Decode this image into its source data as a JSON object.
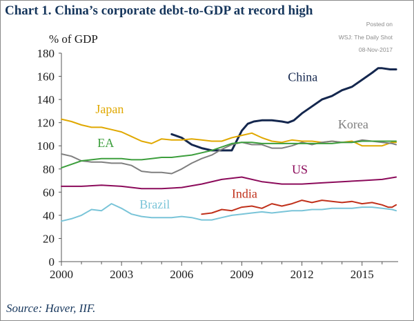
{
  "title": "Chart 1. China’s corporate debt-to-GDP at record high",
  "stamp": [
    "Posted on",
    "WSJ: The Daily Shot",
    "08-Nov-2017"
  ],
  "source": "Source: Haver, IIF.",
  "chart_data": {
    "type": "line",
    "ylabel": "% of GDP",
    "ylim": [
      0,
      180
    ],
    "xlim": [
      2000,
      2016.8
    ],
    "yticks": [
      0,
      20,
      40,
      60,
      80,
      100,
      120,
      140,
      160,
      180
    ],
    "xticks": [
      2000,
      2003,
      2006,
      2009,
      2012,
      2015
    ],
    "grid": false,
    "series": [
      {
        "name": "China",
        "color": "#14274e",
        "width": 3,
        "label_at": [
          2011.3,
          156
        ],
        "x": [
          2005.5,
          2006.0,
          2006.5,
          2007.0,
          2007.5,
          2008.0,
          2008.5,
          2009.0,
          2009.3,
          2009.6,
          2010.0,
          2010.5,
          2011.0,
          2011.3,
          2011.6,
          2012.0,
          2012.5,
          2013.0,
          2013.5,
          2014.0,
          2014.5,
          2015.0,
          2015.5,
          2015.8,
          2016.0,
          2016.4,
          2016.7
        ],
        "y": [
          110,
          107,
          101,
          98,
          96,
          96,
          96,
          113,
          119,
          121,
          122,
          122,
          121,
          120,
          122,
          128,
          134,
          140,
          143,
          148,
          151,
          157,
          163,
          167,
          167,
          166,
          166
        ]
      },
      {
        "name": "Japan",
        "color": "#e0a800",
        "width": 2,
        "label_at": [
          2001.7,
          128
        ],
        "x": [
          2000,
          2000.5,
          2001,
          2001.5,
          2002,
          2002.5,
          2003,
          2003.5,
          2004,
          2004.5,
          2005,
          2005.5,
          2006,
          2006.5,
          2007,
          2007.5,
          2008,
          2008.5,
          2009,
          2009.5,
          2010,
          2010.5,
          2011,
          2011.5,
          2012,
          2012.5,
          2013,
          2013.5,
          2014,
          2014.5,
          2015,
          2015.5,
          2016,
          2016.5,
          2016.7
        ],
        "y": [
          123,
          121,
          118,
          116,
          116,
          114,
          112,
          108,
          104,
          102,
          106,
          105,
          105,
          106,
          105,
          104,
          104,
          107,
          109,
          111,
          107,
          104,
          103,
          105,
          104,
          104,
          103,
          104,
          103,
          104,
          100,
          100,
          100,
          103,
          103
        ]
      },
      {
        "name": "Korea",
        "color": "#7f7f7f",
        "width": 2,
        "label_at": [
          2013.8,
          115
        ],
        "x": [
          2000,
          2000.5,
          2001,
          2001.5,
          2002,
          2002.5,
          2003,
          2003.5,
          2004,
          2004.5,
          2005,
          2005.5,
          2006,
          2006.5,
          2007,
          2007.5,
          2008,
          2008.5,
          2009,
          2009.5,
          2010,
          2010.5,
          2011,
          2011.5,
          2012,
          2012.5,
          2013,
          2013.5,
          2014,
          2014.5,
          2015,
          2015.5,
          2016,
          2016.5,
          2016.7
        ],
        "y": [
          93,
          91,
          87,
          86,
          86,
          85,
          85,
          83,
          78,
          77,
          77,
          76,
          80,
          85,
          89,
          92,
          97,
          101,
          103,
          101,
          101,
          98,
          98,
          100,
          103,
          101,
          103,
          104,
          103,
          103,
          105,
          104,
          103,
          102,
          101
        ]
      },
      {
        "name": "EA",
        "color": "#3c9e3c",
        "width": 2,
        "label_at": [
          2001.8,
          99
        ],
        "x": [
          2000,
          2000.5,
          2001,
          2001.5,
          2002,
          2002.5,
          2003,
          2003.5,
          2004,
          2004.5,
          2005,
          2005.5,
          2006,
          2006.5,
          2007,
          2007.5,
          2008,
          2008.5,
          2009,
          2009.5,
          2010,
          2010.5,
          2011,
          2011.5,
          2012,
          2012.5,
          2013,
          2013.5,
          2014,
          2014.5,
          2015,
          2015.5,
          2016,
          2016.5,
          2016.7
        ],
        "y": [
          81,
          84,
          87,
          88,
          89,
          89,
          89,
          88,
          88,
          89,
          90,
          90,
          91,
          92,
          94,
          96,
          99,
          102,
          103,
          103,
          102,
          102,
          102,
          102,
          102,
          102,
          102,
          102,
          103,
          103,
          104,
          104,
          104,
          104,
          104
        ]
      },
      {
        "name": "US",
        "color": "#8b0a5a",
        "width": 2,
        "label_at": [
          2011.5,
          76
        ],
        "x": [
          2000,
          2001,
          2002,
          2003,
          2004,
          2005,
          2006,
          2007,
          2008,
          2009,
          2010,
          2011,
          2012,
          2013,
          2014,
          2015,
          2016,
          2016.7
        ],
        "y": [
          65,
          65,
          66,
          65,
          63,
          63,
          64,
          67,
          71,
          73,
          69,
          67,
          67,
          68,
          69,
          70,
          71,
          73
        ]
      },
      {
        "name": "India",
        "color": "#c0301a",
        "width": 2,
        "label_at": [
          2008.5,
          55
        ],
        "x": [
          2007.0,
          2007.5,
          2008.0,
          2008.5,
          2009.0,
          2009.5,
          2010.0,
          2010.5,
          2011.0,
          2011.5,
          2012.0,
          2012.5,
          2013.0,
          2013.5,
          2014.0,
          2014.5,
          2015.0,
          2015.5,
          2016.0,
          2016.3,
          2016.5,
          2016.7
        ],
        "y": [
          41,
          42,
          45,
          44,
          47,
          48,
          46,
          50,
          48,
          50,
          53,
          51,
          53,
          52,
          51,
          52,
          50,
          51,
          49,
          47,
          47,
          49
        ]
      },
      {
        "name": "Brazil",
        "color": "#79c4d8",
        "width": 2,
        "label_at": [
          2003.9,
          46
        ],
        "x": [
          2000,
          2000.5,
          2001,
          2001.5,
          2002,
          2002.5,
          2003,
          2003.5,
          2004,
          2004.5,
          2005,
          2005.5,
          2006,
          2006.5,
          2007,
          2007.5,
          2008,
          2008.5,
          2009,
          2009.5,
          2010,
          2010.5,
          2011,
          2011.5,
          2012,
          2012.5,
          2013,
          2013.5,
          2014,
          2014.5,
          2015,
          2015.5,
          2016,
          2016.5,
          2016.7
        ],
        "y": [
          35,
          37,
          40,
          45,
          44,
          50,
          46,
          41,
          39,
          38,
          38,
          38,
          39,
          38,
          36,
          36,
          38,
          40,
          41,
          42,
          43,
          42,
          43,
          44,
          44,
          45,
          45,
          46,
          46,
          46,
          47,
          47,
          46,
          45,
          44
        ]
      }
    ]
  }
}
